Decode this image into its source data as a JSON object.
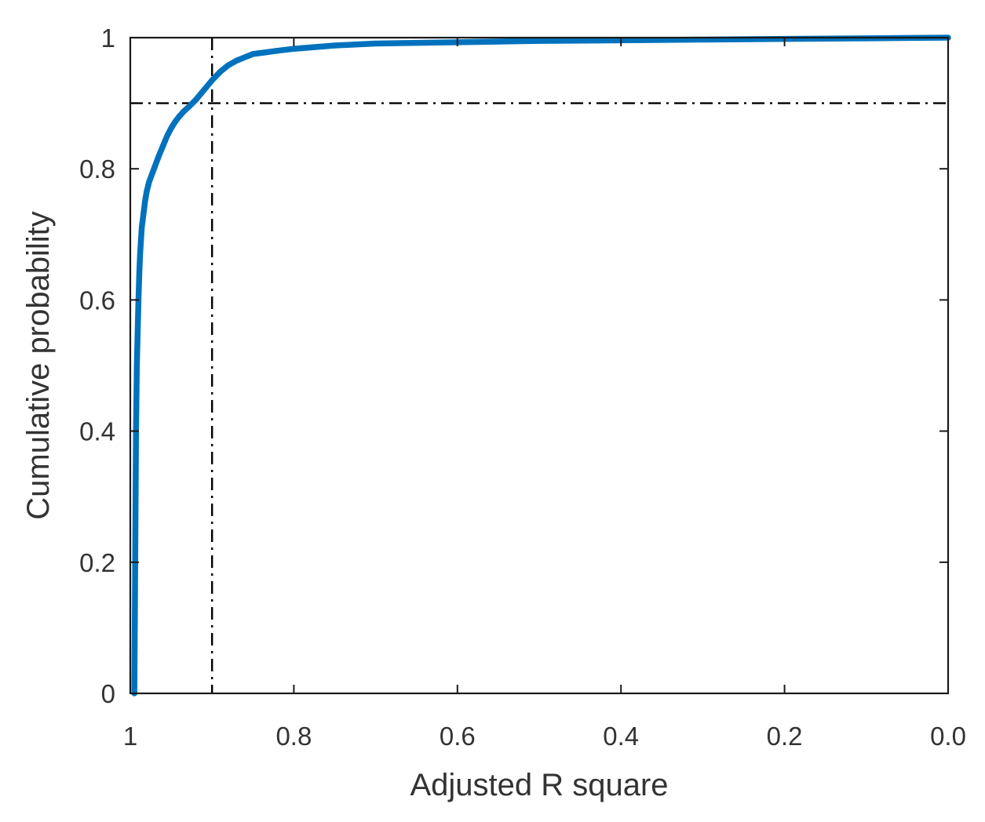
{
  "chart_data": {
    "type": "line",
    "xlabel": "Adjusted R square",
    "ylabel": "Cumulative probability",
    "xlim": [
      1,
      0
    ],
    "ylim": [
      0,
      1
    ],
    "x_reversed": true,
    "grid": false,
    "x_ticks": [
      {
        "value": 1,
        "label": "1"
      },
      {
        "value": 0.8,
        "label": "0.8"
      },
      {
        "value": 0.6,
        "label": "0.6"
      },
      {
        "value": 0.4,
        "label": "0.4"
      },
      {
        "value": 0.2,
        "label": "0.2"
      },
      {
        "value": 0,
        "label": "0.0"
      }
    ],
    "y_ticks": [
      {
        "value": 0,
        "label": "0"
      },
      {
        "value": 0.2,
        "label": "0.2"
      },
      {
        "value": 0.4,
        "label": "0.4"
      },
      {
        "value": 0.6,
        "label": "0.6"
      },
      {
        "value": 0.8,
        "label": "0.8"
      },
      {
        "value": 1,
        "label": "1"
      }
    ],
    "series": [
      {
        "color": "#0072BD",
        "x": [
          0.995,
          0.994,
          0.993,
          0.992,
          0.991,
          0.99,
          0.989,
          0.988,
          0.987,
          0.986,
          0.984,
          0.982,
          0.98,
          0.977,
          0.974,
          0.971,
          0.968,
          0.965,
          0.96,
          0.955,
          0.95,
          0.945,
          0.94,
          0.935,
          0.928,
          0.92,
          0.91,
          0.9,
          0.89,
          0.88,
          0.87,
          0.86,
          0.85,
          0.82,
          0.8,
          0.75,
          0.7,
          0.6,
          0.5,
          0.4,
          0.3,
          0.2,
          0.1,
          0.05,
          0
        ],
        "y": [
          0,
          0.2,
          0.4,
          0.5,
          0.55,
          0.6,
          0.64,
          0.67,
          0.69,
          0.71,
          0.73,
          0.75,
          0.765,
          0.78,
          0.79,
          0.8,
          0.81,
          0.82,
          0.835,
          0.85,
          0.862,
          0.872,
          0.88,
          0.887,
          0.895,
          0.905,
          0.92,
          0.935,
          0.948,
          0.958,
          0.965,
          0.97,
          0.975,
          0.98,
          0.983,
          0.988,
          0.991,
          0.993,
          0.995,
          0.996,
          0.997,
          0.998,
          0.999,
          0.9995,
          1
        ]
      }
    ],
    "reference_lines": [
      {
        "orientation": "vertical",
        "x": 0.9,
        "style": "dash-dot",
        "color": "#000000"
      },
      {
        "orientation": "horizontal",
        "y": 0.9,
        "style": "dash-dot",
        "color": "#000000"
      }
    ]
  }
}
